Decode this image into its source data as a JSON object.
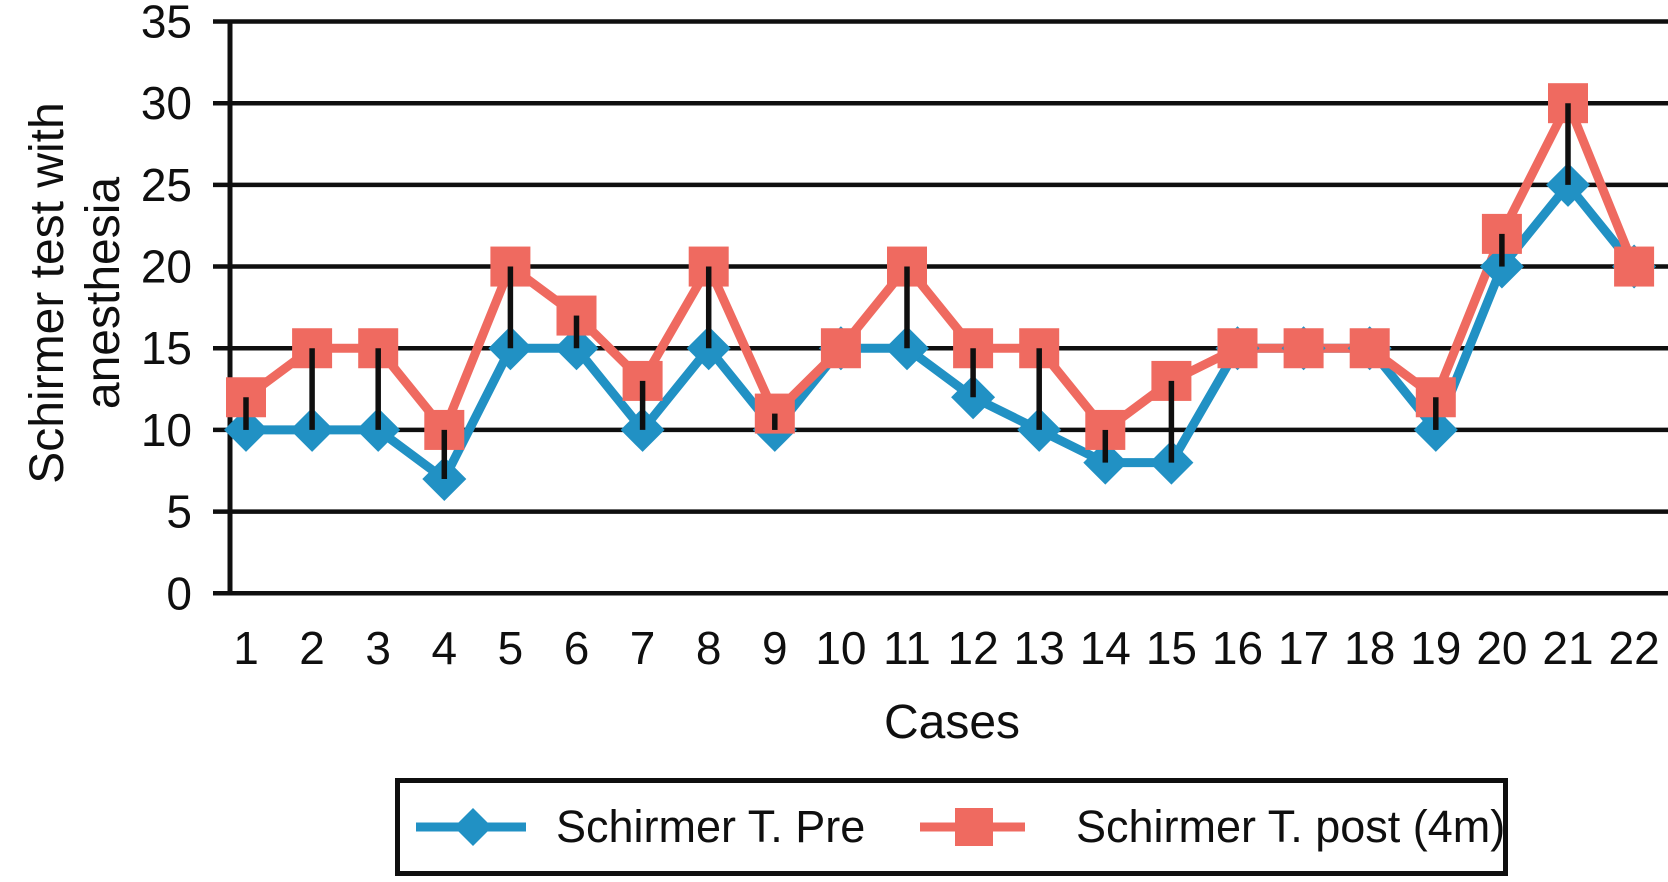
{
  "chart_data": {
    "type": "line",
    "title": "",
    "xlabel": "Cases",
    "ylabel": "Schirmer test with anesthesia",
    "ylabel_lines": [
      "Schirmer test with",
      "anesthesia"
    ],
    "categories": [
      "1",
      "2",
      "3",
      "4",
      "5",
      "6",
      "7",
      "8",
      "9",
      "10",
      "11",
      "12",
      "13",
      "14",
      "15",
      "16",
      "17",
      "18",
      "19",
      "20",
      "21",
      "22"
    ],
    "series": [
      {
        "name": "Schirmer T. Pre",
        "marker": "diamond",
        "color": "#2191C4",
        "values": [
          10,
          10,
          10,
          7,
          15,
          15,
          10,
          15,
          10,
          15,
          15,
          12,
          10,
          8,
          8,
          15,
          15,
          15,
          10,
          20,
          25,
          20
        ]
      },
      {
        "name": "Schirmer T. post (4m)",
        "marker": "square",
        "color": "#EF6A60",
        "values": [
          12,
          15,
          15,
          10,
          20,
          17,
          13,
          20,
          11,
          15,
          20,
          15,
          15,
          10,
          13,
          15,
          15,
          15,
          12,
          22,
          30,
          20
        ]
      }
    ],
    "ylim": [
      0,
      35
    ],
    "yticks": [
      0,
      5,
      10,
      15,
      20,
      25,
      30,
      35
    ],
    "grid": true,
    "high_low_lines": true,
    "legend_position": "bottom"
  },
  "colors": {
    "ink": "#0f0f0f",
    "background": "#ffffff",
    "series_pre": "#2191C4",
    "series_post": "#EF6A60"
  }
}
